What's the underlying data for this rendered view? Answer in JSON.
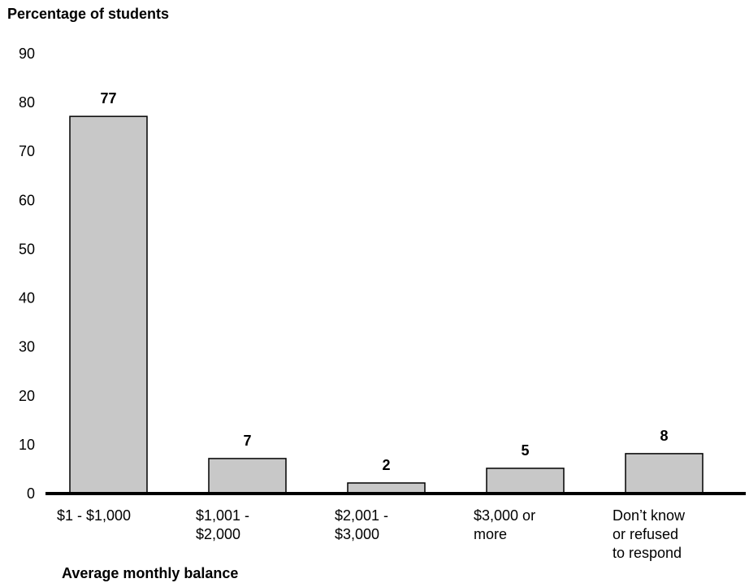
{
  "chart_data": {
    "type": "bar",
    "ylabel": "Percentage of students",
    "xlabel": "Average monthly balance",
    "categories": [
      [
        "$1 - $1,000"
      ],
      [
        "$1,001 -",
        "$2,000"
      ],
      [
        "$2,001 -",
        "$3,000"
      ],
      [
        "$3,000 or",
        "more"
      ],
      [
        "Don’t know",
        "or refused",
        "to respond"
      ]
    ],
    "values": [
      77,
      7,
      2,
      5,
      8
    ],
    "data_labels": [
      "77",
      "7",
      "2",
      "5",
      "8"
    ],
    "ylim": [
      0,
      90
    ],
    "yticks": [
      0,
      10,
      20,
      30,
      40,
      50,
      60,
      70,
      80,
      90
    ],
    "grid": false,
    "legend": "none",
    "colors": {
      "bar_fill": "#c8c8c8",
      "bar_stroke": "#000000",
      "axis": "#000000",
      "text": "#000000"
    }
  }
}
